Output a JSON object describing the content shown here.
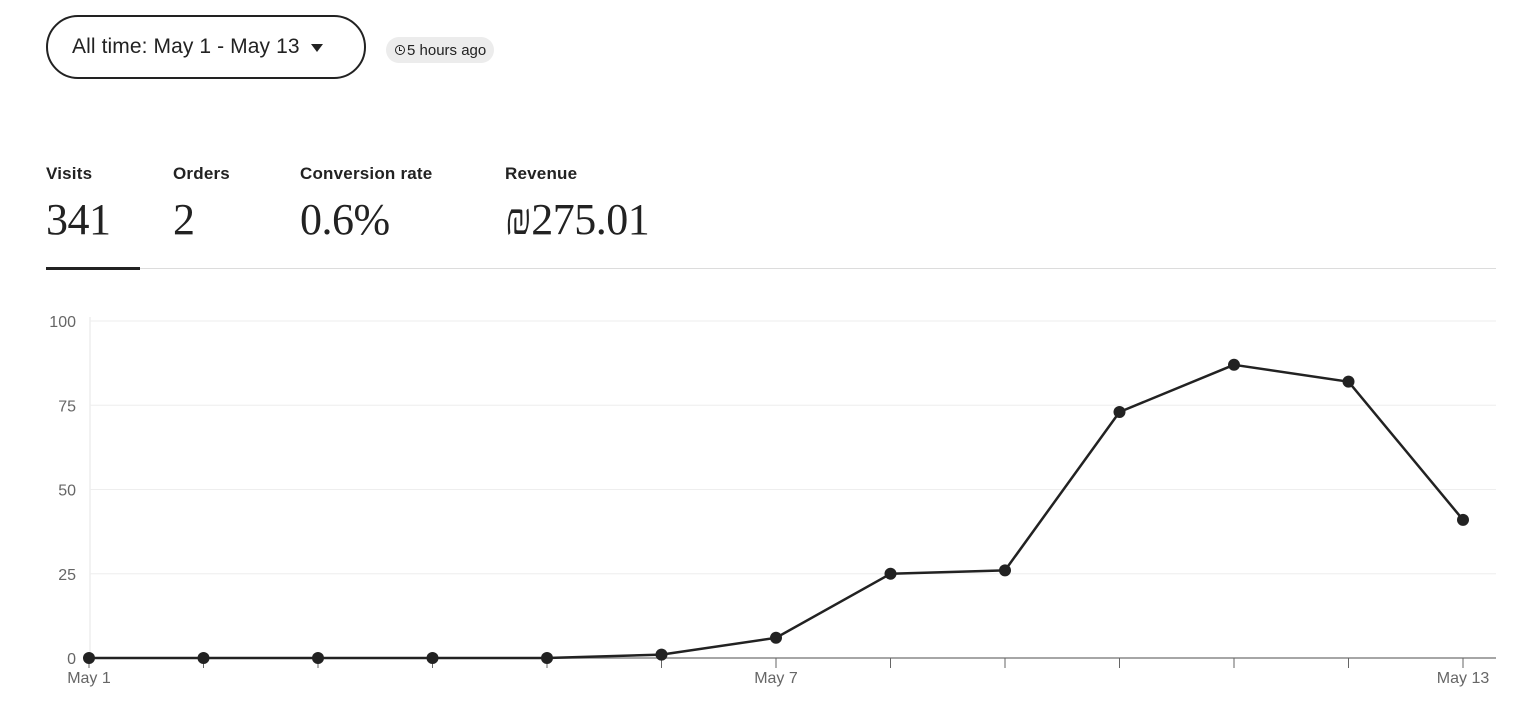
{
  "header": {
    "date_range_label": "All time: May 1 - May 13",
    "updated_label": "5 hours ago"
  },
  "metrics": [
    {
      "label": "Visits",
      "value": "341",
      "active": true
    },
    {
      "label": "Orders",
      "value": "2",
      "active": false
    },
    {
      "label": "Conversion rate",
      "value": "0.6%",
      "active": false
    },
    {
      "label": "Revenue",
      "value": "₪275.01",
      "active": false
    }
  ],
  "colors": {
    "ink": "#222222",
    "badge_bg": "#ececec",
    "grid": "#eeeeee",
    "axis_text": "#666666"
  },
  "icons": {
    "date_caret": "chevron-down-icon",
    "updated_clock": "clock-icon"
  },
  "chart_data": {
    "type": "line",
    "x": [
      "May 1",
      "May 2",
      "May 3",
      "May 4",
      "May 5",
      "May 6",
      "May 7",
      "May 8",
      "May 9",
      "May 10",
      "May 11",
      "May 12",
      "May 13"
    ],
    "x_tick_labels": [
      "May 1",
      "May 7",
      "May 13"
    ],
    "series": [
      {
        "values": [
          0,
          0,
          0,
          0,
          0,
          1,
          6,
          25,
          26,
          73,
          87,
          82,
          41
        ]
      }
    ],
    "ylim": [
      0,
      100
    ],
    "yticks": [
      0,
      25,
      50,
      75,
      100
    ],
    "grid": true,
    "legend": "none"
  }
}
